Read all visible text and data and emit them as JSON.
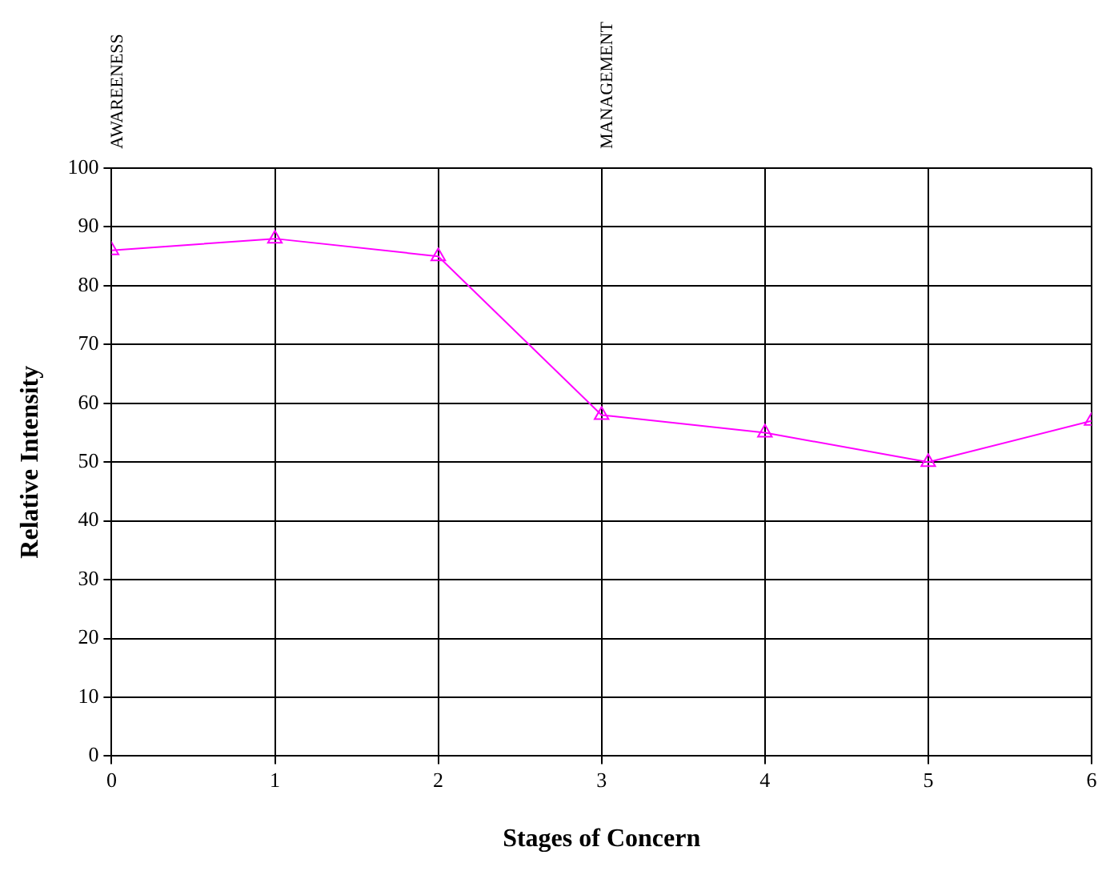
{
  "chart_data": {
    "type": "line",
    "xlabel": "Stages of Concern",
    "ylabel": "Relative Intensity",
    "x": [
      0,
      1,
      2,
      3,
      4,
      5,
      6
    ],
    "series": [
      {
        "color": "#ff00ff",
        "values": [
          86,
          88,
          85,
          58,
          55,
          50,
          57
        ]
      }
    ],
    "xlim": [
      0,
      6
    ],
    "xticks": [
      0,
      1,
      2,
      3,
      4,
      5,
      6
    ],
    "ylim": [
      0,
      100
    ],
    "yticks": [
      0,
      10,
      20,
      30,
      40,
      50,
      60,
      70,
      80,
      90,
      100
    ],
    "grid": true,
    "marker": "triangle",
    "line_style": "solid",
    "legend": false,
    "annotations": [
      "AWAREENESS",
      "MANAGEMENT"
    ]
  }
}
